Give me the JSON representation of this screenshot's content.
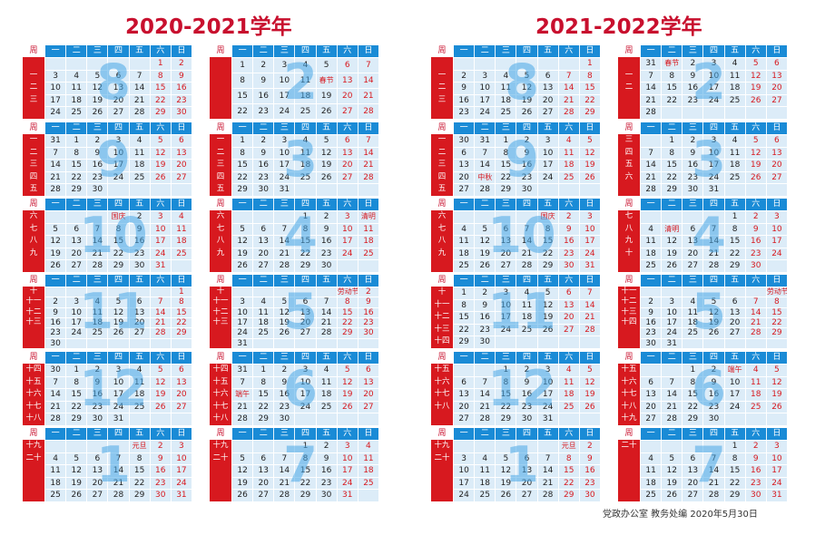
{
  "titles": [
    "2020-2021学年",
    "2021-2022学年"
  ],
  "header_days": [
    "周",
    "一",
    "二",
    "三",
    "四",
    "五",
    "六",
    "日"
  ],
  "footer": "党政办公室   教务处编   2020年5月30日",
  "colors": {
    "title": "#c8102e",
    "header": "#1a8bd6",
    "cell": "#dcecf8",
    "week_bg": "#d7191f",
    "weekend": "#d7191f",
    "big_number": "#4aa8e6"
  },
  "panels": [
    {
      "n": "8",
      "wl": [
        "",
        "一",
        "二",
        "三"
      ],
      "rows": [
        [
          "",
          "",
          "",
          "",
          "",
          "1",
          "2"
        ],
        [
          "3",
          "4",
          "5",
          "6",
          "7",
          "8",
          "9"
        ],
        [
          "10",
          "11",
          "12",
          "13",
          "14",
          "15",
          "16"
        ],
        [
          "17",
          "18",
          "19",
          "20",
          "21",
          "22",
          "23"
        ],
        [
          "24",
          "25",
          "26",
          "27",
          "28",
          "29",
          "30"
        ]
      ]
    },
    {
      "n": "2",
      "wl": [
        "",
        "",
        "",
        ""
      ],
      "rows": [
        [
          "1",
          "2",
          "3",
          "4",
          "5",
          "6",
          "7"
        ],
        [
          "8",
          "9",
          "10",
          "11",
          "春节",
          "13",
          "14"
        ],
        [
          "15",
          "16",
          "17",
          "18",
          "19",
          "20",
          "21"
        ],
        [
          "22",
          "23",
          "24",
          "25",
          "26",
          "27",
          "28"
        ]
      ]
    },
    {
      "n": "9",
      "wl": [
        "一",
        "二",
        "三",
        "四",
        "五"
      ],
      "rows": [
        [
          "31",
          "1",
          "2",
          "3",
          "4",
          "5",
          "6"
        ],
        [
          "7",
          "8",
          "9",
          "10",
          "11",
          "12",
          "13"
        ],
        [
          "14",
          "15",
          "16",
          "17",
          "18",
          "19",
          "20"
        ],
        [
          "21",
          "22",
          "23",
          "24",
          "25",
          "26",
          "27"
        ],
        [
          "28",
          "29",
          "30",
          "",
          "",
          "",
          ""
        ]
      ]
    },
    {
      "n": "3",
      "wl": [
        "一",
        "二",
        "三",
        "四",
        "五"
      ],
      "rows": [
        [
          "1",
          "2",
          "3",
          "4",
          "5",
          "6",
          "7"
        ],
        [
          "8",
          "9",
          "10",
          "11",
          "12",
          "13",
          "14"
        ],
        [
          "15",
          "16",
          "17",
          "18",
          "19",
          "20",
          "21"
        ],
        [
          "22",
          "23",
          "24",
          "25",
          "26",
          "27",
          "28"
        ],
        [
          "29",
          "30",
          "31",
          "",
          "",
          "",
          ""
        ]
      ]
    },
    {
      "n": "10",
      "wl": [
        "六",
        "七",
        "八",
        "九"
      ],
      "rows": [
        [
          "",
          "",
          "",
          "国庆",
          "2",
          "3",
          "4"
        ],
        [
          "5",
          "6",
          "7",
          "8",
          "9",
          "10",
          "11"
        ],
        [
          "12",
          "13",
          "14",
          "15",
          "16",
          "17",
          "18"
        ],
        [
          "19",
          "20",
          "21",
          "22",
          "23",
          "24",
          "25"
        ],
        [
          "26",
          "27",
          "28",
          "29",
          "30",
          "31",
          ""
        ]
      ]
    },
    {
      "n": "4",
      "wl": [
        "六",
        "七",
        "八",
        "九"
      ],
      "rows": [
        [
          "",
          "",
          "",
          "1",
          "2",
          "3",
          "清明"
        ],
        [
          "5",
          "6",
          "7",
          "8",
          "9",
          "10",
          "11"
        ],
        [
          "12",
          "13",
          "14",
          "15",
          "16",
          "17",
          "18"
        ],
        [
          "19",
          "20",
          "21",
          "22",
          "23",
          "24",
          "25"
        ],
        [
          "26",
          "27",
          "28",
          "29",
          "30",
          "",
          ""
        ]
      ]
    },
    {
      "n": "11",
      "wl": [
        "十",
        "十一",
        "十二",
        "十三"
      ],
      "rows": [
        [
          "",
          "",
          "",
          "",
          "",
          "",
          "1"
        ],
        [
          "2",
          "3",
          "4",
          "5",
          "6",
          "7",
          "8"
        ],
        [
          "9",
          "10",
          "11",
          "12",
          "13",
          "14",
          "15"
        ],
        [
          "16",
          "17",
          "18",
          "19",
          "20",
          "21",
          "22"
        ],
        [
          "23",
          "24",
          "25",
          "26",
          "27",
          "28",
          "29"
        ],
        [
          "30",
          "",
          "",
          "",
          "",
          "",
          ""
        ]
      ]
    },
    {
      "n": "5",
      "wl": [
        "十",
        "十一",
        "十二",
        "十三"
      ],
      "rows": [
        [
          "",
          "",
          "",
          "",
          "",
          "劳动节",
          "2"
        ],
        [
          "3",
          "4",
          "5",
          "6",
          "7",
          "8",
          "9"
        ],
        [
          "10",
          "11",
          "12",
          "13",
          "14",
          "15",
          "16"
        ],
        [
          "17",
          "18",
          "19",
          "20",
          "21",
          "22",
          "23"
        ],
        [
          "24",
          "25",
          "26",
          "27",
          "28",
          "29",
          "30"
        ],
        [
          "31",
          "",
          "",
          "",
          "",
          "",
          ""
        ]
      ]
    },
    {
      "n": "12",
      "wl": [
        "十四",
        "十五",
        "十六",
        "十七",
        "十八"
      ],
      "rows": [
        [
          "30",
          "1",
          "2",
          "3",
          "4",
          "5",
          "6"
        ],
        [
          "7",
          "8",
          "9",
          "10",
          "11",
          "12",
          "13"
        ],
        [
          "14",
          "15",
          "16",
          "17",
          "18",
          "19",
          "20"
        ],
        [
          "21",
          "22",
          "23",
          "24",
          "25",
          "26",
          "27"
        ],
        [
          "28",
          "29",
          "30",
          "31",
          "",
          "",
          ""
        ]
      ]
    },
    {
      "n": "6",
      "wl": [
        "十四",
        "十五",
        "十六",
        "十七",
        "十八"
      ],
      "rows": [
        [
          "31",
          "1",
          "2",
          "3",
          "4",
          "5",
          "6"
        ],
        [
          "7",
          "8",
          "9",
          "10",
          "11",
          "12",
          "13"
        ],
        [
          "端午",
          "15",
          "16",
          "17",
          "18",
          "19",
          "20"
        ],
        [
          "21",
          "22",
          "23",
          "24",
          "25",
          "26",
          "27"
        ],
        [
          "28",
          "29",
          "30",
          "",
          "",
          "",
          ""
        ]
      ]
    },
    {
      "n": "1",
      "wl": [
        "十九",
        "二十",
        "",
        ""
      ],
      "rows": [
        [
          "",
          "",
          "",
          "",
          "元旦",
          "2",
          "3"
        ],
        [
          "4",
          "5",
          "6",
          "7",
          "8",
          "9",
          "10"
        ],
        [
          "11",
          "12",
          "13",
          "14",
          "15",
          "16",
          "17"
        ],
        [
          "18",
          "19",
          "20",
          "21",
          "22",
          "23",
          "24"
        ],
        [
          "25",
          "26",
          "27",
          "28",
          "29",
          "30",
          "31"
        ]
      ]
    },
    {
      "n": "7",
      "wl": [
        "十九",
        "二十",
        "",
        ""
      ],
      "rows": [
        [
          "",
          "",
          "",
          "1",
          "2",
          "3",
          "4"
        ],
        [
          "5",
          "6",
          "7",
          "8",
          "9",
          "10",
          "11"
        ],
        [
          "12",
          "13",
          "14",
          "15",
          "16",
          "17",
          "18"
        ],
        [
          "19",
          "20",
          "21",
          "22",
          "23",
          "24",
          "25"
        ],
        [
          "26",
          "27",
          "28",
          "29",
          "30",
          "31",
          ""
        ]
      ]
    },
    {
      "n": "8",
      "wl": [
        "",
        "一",
        "二",
        "三"
      ],
      "rows": [
        [
          "",
          "",
          "",
          "",
          "",
          "",
          "1"
        ],
        [
          "2",
          "3",
          "4",
          "5",
          "6",
          "7",
          "8"
        ],
        [
          "9",
          "10",
          "11",
          "12",
          "13",
          "14",
          "15"
        ],
        [
          "16",
          "17",
          "18",
          "19",
          "20",
          "21",
          "22"
        ],
        [
          "23",
          "24",
          "25",
          "26",
          "27",
          "28",
          "29"
        ]
      ]
    },
    {
      "n": "2",
      "wl": [
        "",
        "一",
        "二",
        ""
      ],
      "rows": [
        [
          "31",
          "春节",
          "2",
          "3",
          "4",
          "5",
          "6"
        ],
        [
          "7",
          "8",
          "9",
          "10",
          "11",
          "12",
          "13"
        ],
        [
          "14",
          "15",
          "16",
          "17",
          "18",
          "19",
          "20"
        ],
        [
          "21",
          "22",
          "23",
          "24",
          "25",
          "26",
          "27"
        ],
        [
          "28",
          "",
          "",
          "",
          "",
          "",
          ""
        ]
      ]
    },
    {
      "n": "9",
      "wl": [
        "一",
        "二",
        "三",
        "四",
        "五"
      ],
      "rows": [
        [
          "30",
          "31",
          "1",
          "2",
          "3",
          "4",
          "5"
        ],
        [
          "6",
          "7",
          "8",
          "9",
          "10",
          "11",
          "12"
        ],
        [
          "13",
          "14",
          "15",
          "16",
          "17",
          "18",
          "19"
        ],
        [
          "20",
          "中秋",
          "22",
          "23",
          "24",
          "25",
          "26"
        ],
        [
          "27",
          "28",
          "29",
          "30",
          "",
          "",
          ""
        ]
      ]
    },
    {
      "n": "3",
      "wl": [
        "三",
        "四",
        "五",
        "六"
      ],
      "rows": [
        [
          "",
          "1",
          "2",
          "3",
          "4",
          "5",
          "6"
        ],
        [
          "7",
          "8",
          "9",
          "10",
          "11",
          "12",
          "13"
        ],
        [
          "14",
          "15",
          "16",
          "17",
          "18",
          "19",
          "20"
        ],
        [
          "21",
          "22",
          "23",
          "24",
          "25",
          "26",
          "27"
        ],
        [
          "28",
          "29",
          "30",
          "31",
          "",
          "",
          ""
        ]
      ]
    },
    {
      "n": "10",
      "wl": [
        "六",
        "七",
        "八",
        "九"
      ],
      "rows": [
        [
          "",
          "",
          "",
          "",
          "国庆",
          "2",
          "3"
        ],
        [
          "4",
          "5",
          "6",
          "7",
          "8",
          "9",
          "10"
        ],
        [
          "11",
          "12",
          "13",
          "14",
          "15",
          "16",
          "17"
        ],
        [
          "18",
          "19",
          "20",
          "21",
          "22",
          "23",
          "24"
        ],
        [
          "25",
          "26",
          "27",
          "28",
          "29",
          "30",
          "31"
        ]
      ]
    },
    {
      "n": "4",
      "wl": [
        "七",
        "八",
        "九",
        "十"
      ],
      "rows": [
        [
          "",
          "",
          "",
          "",
          "1",
          "2",
          "3"
        ],
        [
          "4",
          "清明",
          "6",
          "7",
          "8",
          "9",
          "10"
        ],
        [
          "11",
          "12",
          "13",
          "14",
          "15",
          "16",
          "17"
        ],
        [
          "18",
          "19",
          "20",
          "21",
          "22",
          "23",
          "24"
        ],
        [
          "25",
          "26",
          "27",
          "28",
          "29",
          "30",
          ""
        ]
      ]
    },
    {
      "n": "11",
      "wl": [
        "十",
        "十一",
        "十二",
        "十三",
        "十四"
      ],
      "rows": [
        [
          "1",
          "2",
          "3",
          "4",
          "5",
          "6",
          "7"
        ],
        [
          "8",
          "9",
          "10",
          "11",
          "12",
          "13",
          "14"
        ],
        [
          "15",
          "16",
          "17",
          "18",
          "19",
          "20",
          "21"
        ],
        [
          "22",
          "23",
          "24",
          "25",
          "26",
          "27",
          "28"
        ],
        [
          "29",
          "30",
          "",
          "",
          "",
          "",
          ""
        ]
      ]
    },
    {
      "n": "5",
      "wl": [
        "十一",
        "十二",
        "十三",
        "十四"
      ],
      "rows": [
        [
          "",
          "",
          "",
          "",
          "",
          "",
          "劳动节"
        ],
        [
          "2",
          "3",
          "4",
          "5",
          "6",
          "7",
          "8"
        ],
        [
          "9",
          "10",
          "11",
          "12",
          "13",
          "14",
          "15"
        ],
        [
          "16",
          "17",
          "18",
          "19",
          "20",
          "21",
          "22"
        ],
        [
          "23",
          "24",
          "25",
          "26",
          "27",
          "28",
          "29"
        ],
        [
          "30",
          "31",
          "",
          "",
          "",
          "",
          ""
        ]
      ]
    },
    {
      "n": "12",
      "wl": [
        "十五",
        "十六",
        "十七",
        "十八"
      ],
      "rows": [
        [
          "",
          "",
          "1",
          "2",
          "3",
          "4",
          "5"
        ],
        [
          "6",
          "7",
          "8",
          "9",
          "10",
          "11",
          "12"
        ],
        [
          "13",
          "14",
          "15",
          "16",
          "17",
          "18",
          "19"
        ],
        [
          "20",
          "21",
          "22",
          "23",
          "24",
          "25",
          "26"
        ],
        [
          "27",
          "28",
          "29",
          "30",
          "31",
          "",
          ""
        ]
      ]
    },
    {
      "n": "6",
      "wl": [
        "十五",
        "十六",
        "十七",
        "十八",
        "十九"
      ],
      "rows": [
        [
          "",
          "",
          "1",
          "2",
          "端午",
          "4",
          "5"
        ],
        [
          "6",
          "7",
          "8",
          "9",
          "10",
          "11",
          "12"
        ],
        [
          "13",
          "14",
          "15",
          "16",
          "17",
          "18",
          "19"
        ],
        [
          "20",
          "21",
          "22",
          "23",
          "24",
          "25",
          "26"
        ],
        [
          "27",
          "28",
          "29",
          "30",
          "",
          "",
          ""
        ]
      ]
    },
    {
      "n": "1",
      "wl": [
        "十九",
        "二十",
        "",
        ""
      ],
      "rows": [
        [
          "",
          "",
          "",
          "",
          "",
          "元旦",
          "2"
        ],
        [
          "3",
          "4",
          "5",
          "6",
          "7",
          "8",
          "9"
        ],
        [
          "10",
          "11",
          "12",
          "13",
          "14",
          "15",
          "16"
        ],
        [
          "17",
          "18",
          "19",
          "20",
          "21",
          "22",
          "23"
        ],
        [
          "24",
          "25",
          "26",
          "27",
          "28",
          "29",
          "30"
        ]
      ]
    },
    {
      "n": "7",
      "wl": [
        "二十",
        "",
        "",
        ""
      ],
      "rows": [
        [
          "",
          "",
          "",
          "",
          "1",
          "2",
          "3"
        ],
        [
          "4",
          "5",
          "6",
          "7",
          "8",
          "9",
          "10"
        ],
        [
          "11",
          "12",
          "13",
          "14",
          "15",
          "16",
          "17"
        ],
        [
          "18",
          "19",
          "20",
          "21",
          "22",
          "23",
          "24"
        ],
        [
          "25",
          "26",
          "27",
          "28",
          "29",
          "30",
          "31"
        ]
      ]
    }
  ]
}
